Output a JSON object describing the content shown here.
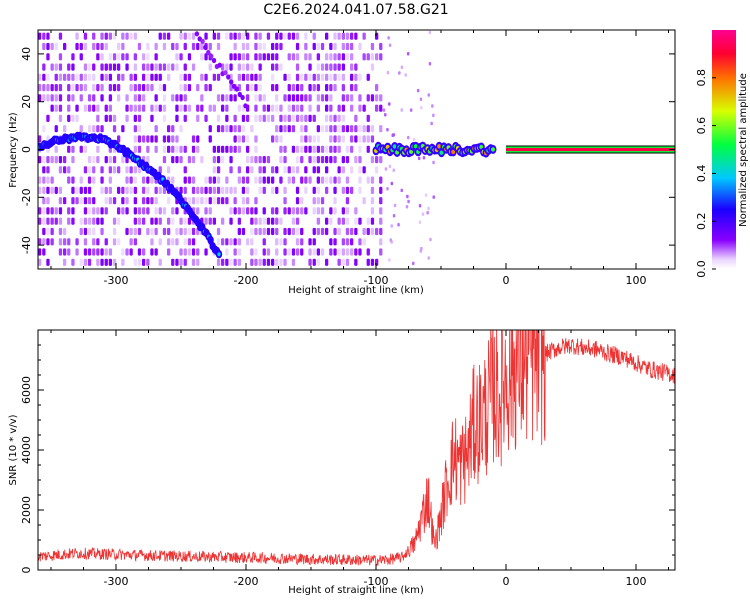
{
  "title": "C2E6.2024.041.07.58.G21",
  "colors": {
    "spectrogram_low": "#f2eaff",
    "spectrogram_mid": "#7a10ff",
    "echo_core": "#ff2a6a",
    "snr_line": "#ee3333",
    "band_edge": "#000000"
  },
  "chart_data": [
    {
      "type": "heatmap",
      "xlabel": "Height of straight line (km)",
      "ylabel": "Frequency (Hz)",
      "xlim": [
        -360,
        130
      ],
      "ylim": [
        -50,
        50
      ],
      "xticks": [
        -300,
        -200,
        -100,
        0,
        100
      ],
      "yticks": [
        -40,
        -20,
        0,
        20,
        40
      ],
      "colorscale": "rainbow (violet to magenta)",
      "colorbar": {
        "label": "Normalized spectral amplitude",
        "range": [
          0,
          1
        ],
        "ticks": [
          0.0,
          0.2,
          0.4,
          0.6,
          0.8
        ]
      },
      "features": {
        "noise_region_x": [
          -360,
          -95
        ],
        "doppler_trace": {
          "x": [
            -360,
            -345,
            -330,
            -315,
            -300,
            -285,
            -270,
            -255,
            -240,
            -230,
            -220
          ],
          "y": [
            1,
            4,
            5,
            5,
            2,
            -4,
            -10,
            -18,
            -28,
            -36,
            -45
          ]
        },
        "secondary_trace": {
          "x": [
            -240,
            -230,
            -220,
            -210,
            -200
          ],
          "y": [
            50,
            43,
            34,
            26,
            19
          ]
        },
        "echo_band": {
          "x": [
            -100,
            130
          ],
          "frequency": 0,
          "half_width": 1.2,
          "peak_amplitude": 1.0
        }
      }
    },
    {
      "type": "line",
      "xlabel": "Height of straight line (km)",
      "ylabel": "SNR (10 * v/v)",
      "xlim": [
        -360,
        130
      ],
      "ylim": [
        0,
        8000
      ],
      "xticks": [
        -300,
        -200,
        -100,
        0,
        100
      ],
      "yticks": [
        0,
        2000,
        4000,
        6000
      ],
      "series": [
        {
          "x": [
            -360,
            -330,
            -300,
            -270,
            -240,
            -210,
            -180,
            -150,
            -120,
            -100,
            -90,
            -80,
            -70,
            -65,
            -60,
            -55,
            -50,
            -45,
            -40,
            -35,
            -30,
            -25,
            -20,
            -15,
            -10,
            -5,
            0,
            10,
            20,
            30,
            40,
            50,
            60,
            70,
            80,
            90,
            100,
            110,
            120,
            130
          ],
          "values": [
            450,
            560,
            520,
            480,
            450,
            420,
            400,
            360,
            340,
            320,
            350,
            420,
            900,
            1700,
            2500,
            800,
            1800,
            3000,
            3800,
            3500,
            3800,
            4800,
            5000,
            5300,
            6000,
            5800,
            6500,
            6900,
            7000,
            7200,
            7400,
            7500,
            7400,
            7350,
            7200,
            7100,
            6900,
            6700,
            6600,
            6500
          ]
        }
      ]
    }
  ]
}
